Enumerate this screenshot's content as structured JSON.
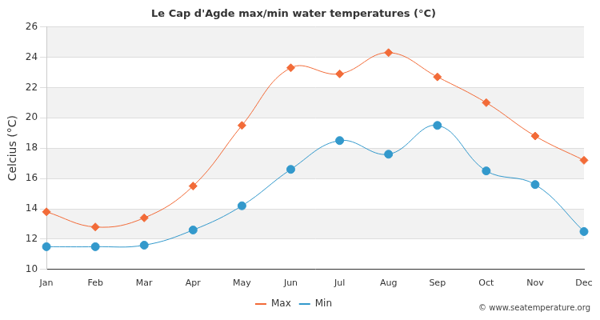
{
  "chart_data": {
    "type": "line",
    "title": "Le Cap d'Agde max/min water temperatures (°C)",
    "y_label": "Celcius (°C)",
    "annotations": [
      "© www.seatemperature.org"
    ],
    "categories": [
      "Jan",
      "Feb",
      "Mar",
      "Apr",
      "May",
      "Jun",
      "Jul",
      "Aug",
      "Sep",
      "Oct",
      "Nov",
      "Dec"
    ],
    "series": [
      {
        "name": "Max",
        "color": "#f26b38",
        "marker": "diamond",
        "line_style": "solid",
        "values": [
          13.8,
          12.8,
          13.4,
          15.5,
          19.5,
          23.3,
          22.9,
          24.3,
          22.7,
          21.0,
          18.8,
          17.2
        ]
      },
      {
        "name": "Min",
        "color": "#3399cc",
        "marker": "circle",
        "line_style": "solid",
        "values": [
          11.5,
          11.5,
          11.6,
          12.6,
          14.2,
          16.6,
          18.5,
          17.6,
          19.5,
          16.5,
          15.6,
          12.5
        ]
      }
    ],
    "ylim": [
      10,
      26
    ],
    "yticks": [
      10,
      12,
      14,
      16,
      18,
      20,
      22,
      24,
      26
    ],
    "grid": true,
    "legend": "bottom"
  }
}
